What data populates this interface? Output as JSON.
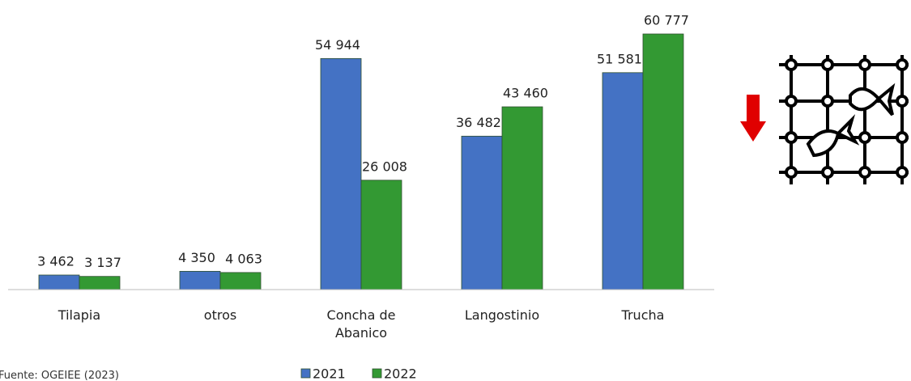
{
  "chart_data": {
    "type": "bar",
    "categories": [
      "Tilapia",
      "otros",
      "Concha de Abanico",
      "Langostinio",
      "Trucha"
    ],
    "series": [
      {
        "name": "2021",
        "color": "#4472c4",
        "values": [
          3462,
          4350,
          54944,
          36482,
          51581
        ],
        "value_labels": [
          "3 462",
          "4 350",
          "54 944",
          "36 482",
          "51 581"
        ]
      },
      {
        "name": "2022",
        "color": "#339933",
        "values": [
          3137,
          4063,
          26008,
          43460,
          60777
        ],
        "value_labels": [
          "3 137",
          "4 063",
          "26 008",
          "43 460",
          "60 777"
        ]
      }
    ],
    "source": "Fuente: OGEIEE (2023)"
  }
}
